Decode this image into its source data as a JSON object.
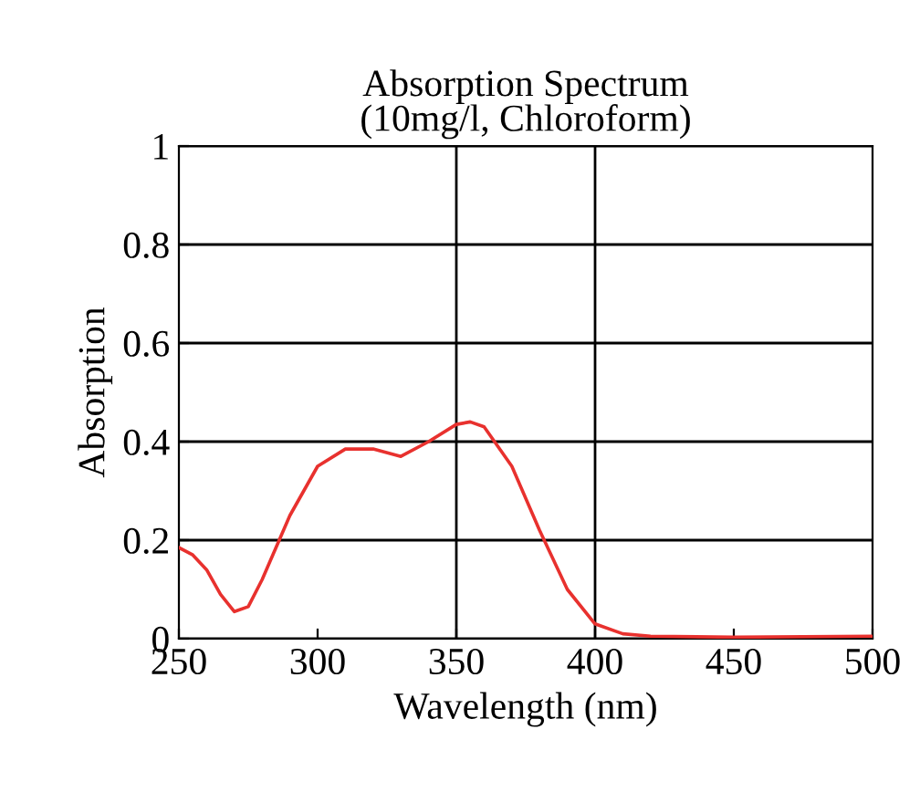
{
  "chart_data": {
    "type": "line",
    "title": "Absorption Spectrum\n(10mg/l, Chloroform)",
    "xlabel": "Wavelength (nm)",
    "ylabel": "Absorption",
    "x": [
      250,
      255,
      260,
      265,
      270,
      275,
      280,
      290,
      300,
      310,
      320,
      330,
      340,
      350,
      355,
      360,
      370,
      380,
      390,
      400,
      410,
      420,
      450,
      500
    ],
    "series": [
      {
        "color": "#e8312e",
        "values": [
          0.185,
          0.17,
          0.14,
          0.09,
          0.055,
          0.065,
          0.12,
          0.25,
          0.35,
          0.385,
          0.385,
          0.37,
          0.4,
          0.435,
          0.44,
          0.43,
          0.35,
          0.22,
          0.1,
          0.03,
          0.01,
          0.005,
          0.003,
          0.005
        ]
      }
    ],
    "xlim": [
      250,
      500
    ],
    "ylim": [
      0,
      1
    ],
    "xticks": [
      250,
      300,
      350,
      400,
      450,
      500
    ],
    "yticks": [
      0,
      0.2,
      0.4,
      0.6,
      0.8,
      1
    ],
    "grid": "y",
    "marker": "none",
    "line_style": "solid",
    "legend": false,
    "ref_lines": [
      {
        "axis": "x",
        "value": 350,
        "color": "#000000"
      },
      {
        "axis": "x",
        "value": 400,
        "color": "#000000"
      }
    ]
  }
}
